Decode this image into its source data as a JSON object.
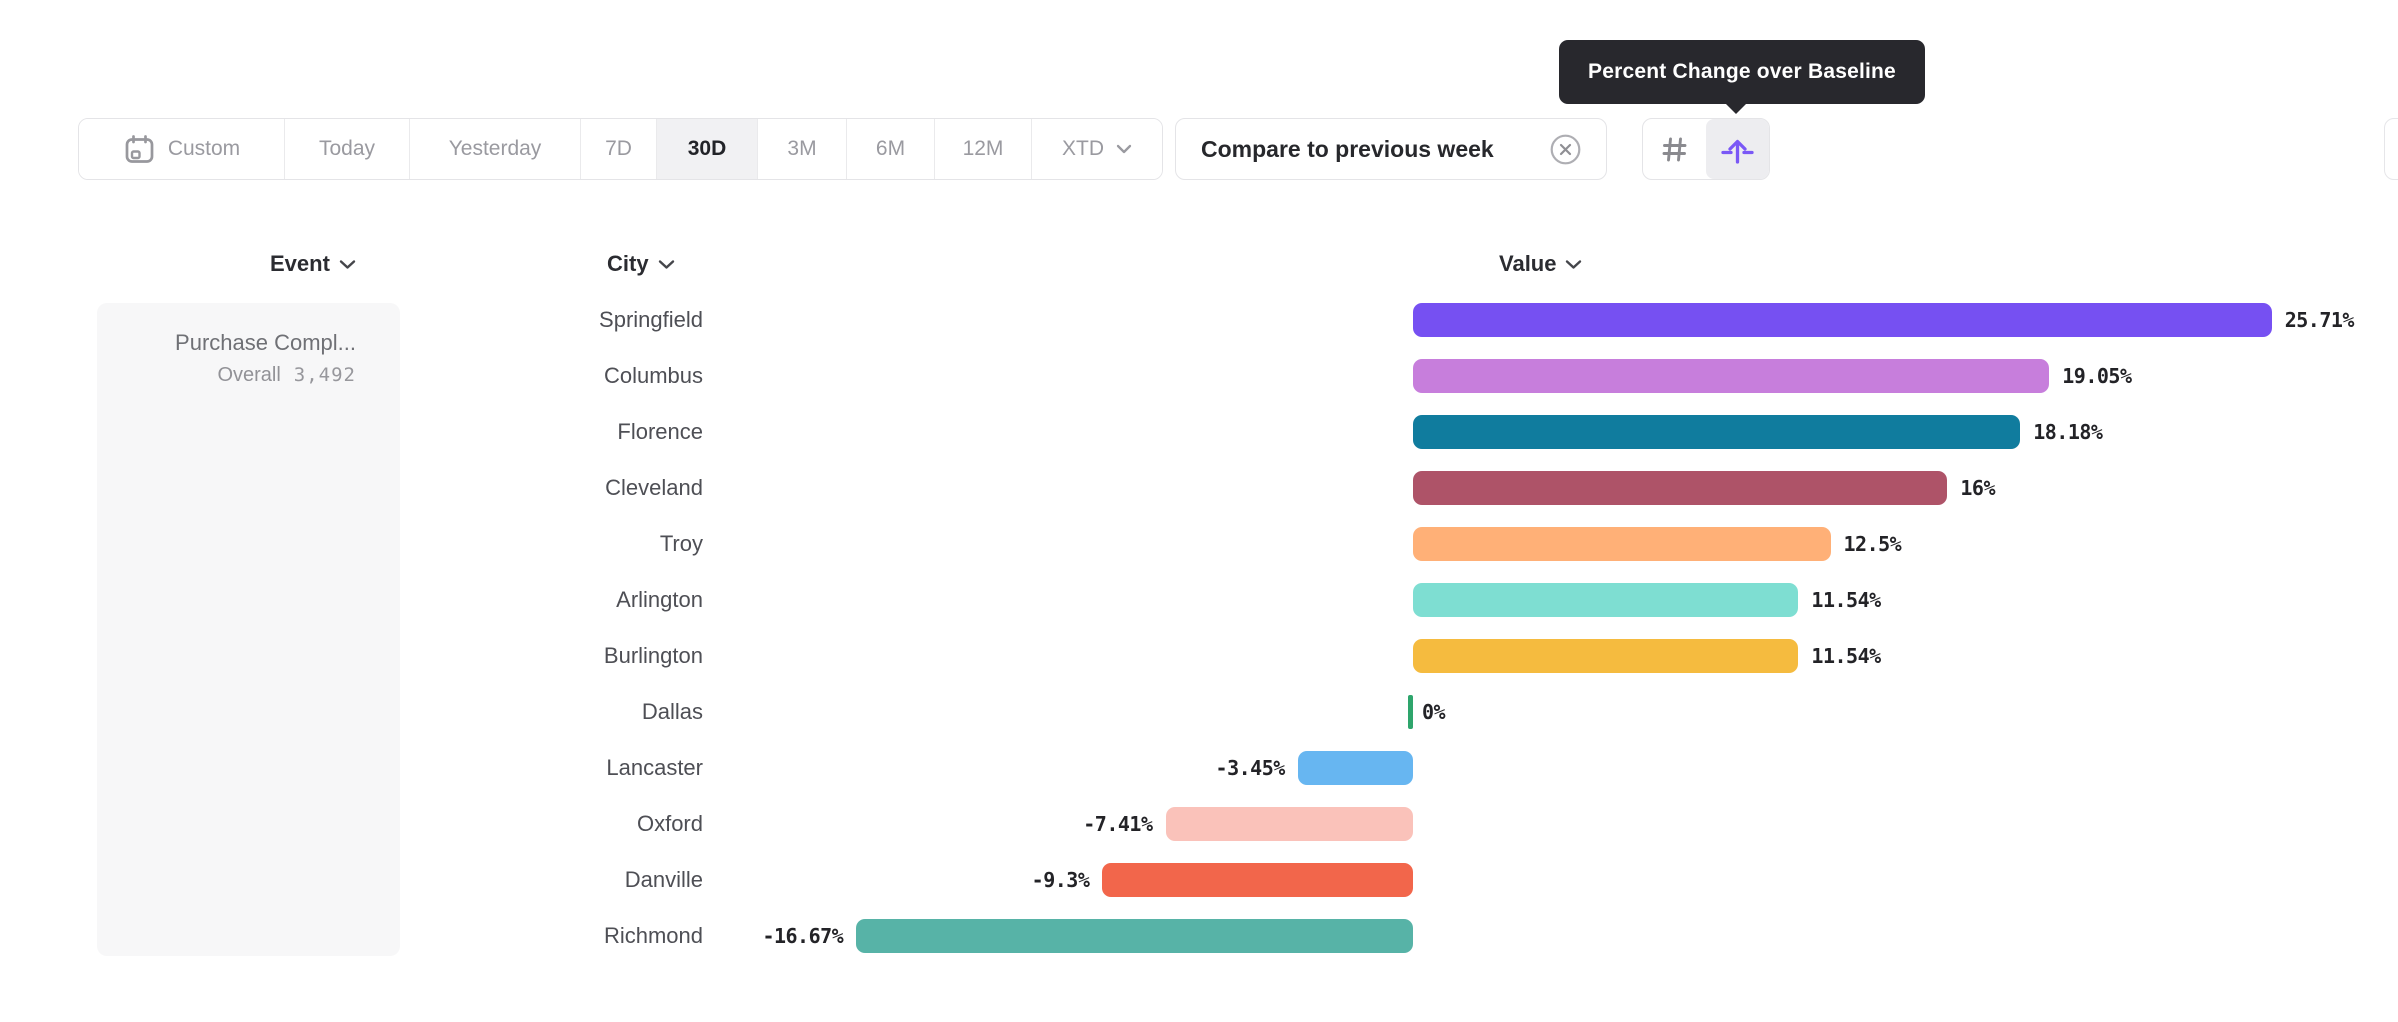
{
  "tooltip": {
    "text": "Percent Change over Baseline"
  },
  "toolbar": {
    "date_ranges": [
      {
        "label": "Custom",
        "icon": "calendar",
        "selected": false
      },
      {
        "label": "Today",
        "selected": false
      },
      {
        "label": "Yesterday",
        "selected": false
      },
      {
        "label": "7D",
        "selected": false
      },
      {
        "label": "30D",
        "selected": true
      },
      {
        "label": "3M",
        "selected": false
      },
      {
        "label": "6M",
        "selected": false
      },
      {
        "label": "12M",
        "selected": false
      },
      {
        "label": "XTD",
        "chevron": true,
        "selected": false
      }
    ],
    "comparison": {
      "label": "Compare to previous week"
    },
    "value_mode_toggle": [
      {
        "name": "absolute-numbers",
        "icon": "hash",
        "selected": false
      },
      {
        "name": "percent-change-over-baseline",
        "icon": "baseline-arrow",
        "selected": true
      }
    ]
  },
  "columns": {
    "event": "Event",
    "city": "City",
    "value": "Value"
  },
  "event_panel": {
    "event_name": "Purchase Compl...",
    "overall_label": "Overall",
    "overall_value": "3,492"
  },
  "chart_data": {
    "type": "bar",
    "orientation": "horizontal",
    "value_unit": "percent change over baseline",
    "baseline": 0,
    "categories": [
      "Springfield",
      "Columbus",
      "Florence",
      "Cleveland",
      "Troy",
      "Arlington",
      "Burlington",
      "Dallas",
      "Lancaster",
      "Oxford",
      "Danville",
      "Richmond"
    ],
    "values": [
      25.71,
      19.05,
      18.18,
      16,
      12.5,
      11.54,
      11.54,
      0,
      -3.45,
      -7.41,
      -9.3,
      -16.67
    ],
    "labels": [
      "25.71%",
      "19.05%",
      "18.18%",
      "16%",
      "12.5%",
      "11.54%",
      "11.54%",
      "0%",
      "-3.45%",
      "-7.41%",
      "-9.3%",
      "-16.67%"
    ],
    "bar_colors": [
      "#7650f2",
      "#c77edc",
      "#107c9e",
      "#ae5368",
      "#ffb077",
      "#7eded2",
      "#f5bb3f",
      "#2ea56c",
      "#67b6f1",
      "#fac2ba",
      "#f2664b",
      "#57b3a7"
    ],
    "xlim": [
      -20,
      28
    ],
    "grid": false,
    "legend": false
  },
  "colors": {
    "accent_purple": "#7a58f6",
    "tooltip_bg": "#28282d",
    "panel_bg": "#f7f7f8",
    "border": "#e4e4e7",
    "muted_text": "#9a9aa0",
    "dark_text": "#27282c",
    "zero_tick_green": "#2ea56c"
  }
}
